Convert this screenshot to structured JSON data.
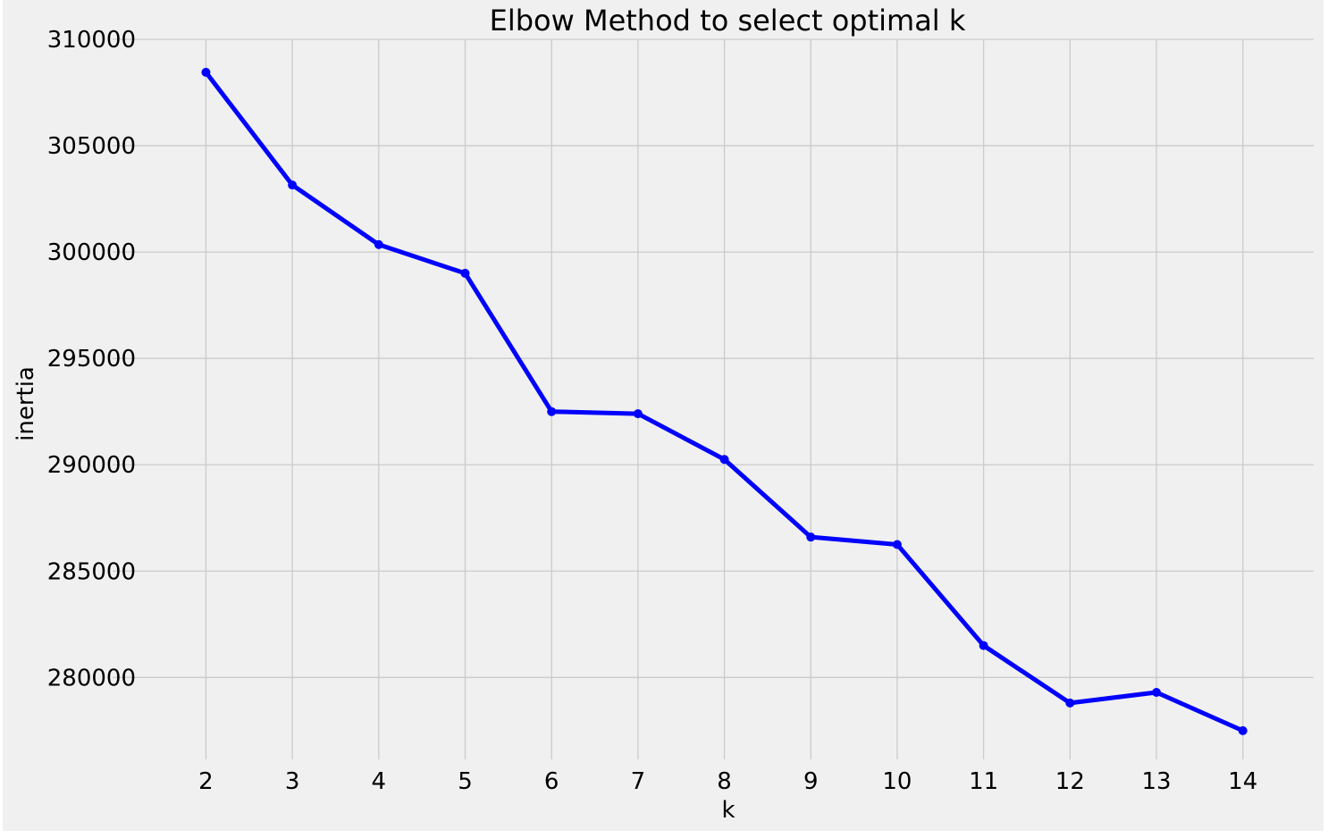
{
  "chart_data": {
    "type": "line",
    "title": "Elbow Method to select optimal k",
    "xlabel": "k",
    "ylabel": "inertia",
    "x": [
      2,
      3,
      4,
      5,
      6,
      7,
      8,
      9,
      10,
      11,
      12,
      13,
      14
    ],
    "x_ticks": [
      "2",
      "3",
      "4",
      "5",
      "6",
      "7",
      "8",
      "9",
      "10",
      "11",
      "12",
      "13",
      "14"
    ],
    "y_ticks": [
      "280000",
      "285000",
      "290000",
      "295000",
      "300000",
      "305000",
      "310000"
    ],
    "y_tick_values": [
      280000,
      285000,
      290000,
      295000,
      300000,
      305000,
      310000
    ],
    "series": [
      {
        "values": [
          308450,
          303150,
          300350,
          299000,
          292500,
          292400,
          290250,
          286600,
          286250,
          281500,
          278800,
          279300,
          277500
        ],
        "color": "#0000ff",
        "marker": "circle"
      }
    ],
    "xlim": [
      0.92,
      14.82
    ],
    "ylim": [
      276150,
      310000
    ],
    "grid": true,
    "style": {
      "background": "#f0f0f0",
      "grid_color": "#cbcbcb"
    }
  }
}
